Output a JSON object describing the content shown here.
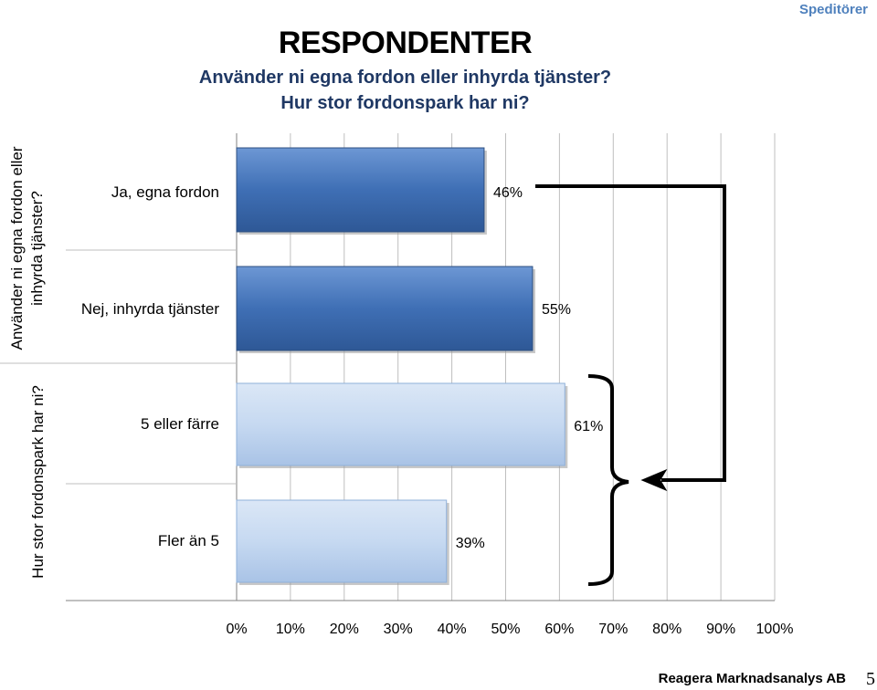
{
  "header": {
    "section_tag": "Speditörer",
    "title": "RESPONDENTER",
    "subtitle_line1": "Använder ni egna fordon eller inhyrda tjänster?",
    "subtitle_line2": "Hur stor fordonspark har ni?"
  },
  "footer": {
    "company": "Reagera Marknadsanalys AB",
    "page_number": "5"
  },
  "colors": {
    "dark_bar": "#3f6fb5",
    "light_bar": "#c6d9f1",
    "grid": "#bfbfbf",
    "bracket": "#000000"
  },
  "chart_data": {
    "type": "bar",
    "orientation": "horizontal",
    "title": "RESPONDENTER",
    "xlim": [
      0,
      100
    ],
    "x_tick_labels": [
      "0%",
      "10%",
      "20%",
      "30%",
      "40%",
      "50%",
      "60%",
      "70%",
      "80%",
      "90%",
      "100%"
    ],
    "grid": true,
    "groups": [
      {
        "label_line1": "Använder ni egna fordon eller",
        "label_line2": "inhyrda tjänster?",
        "style": "dark",
        "bars": [
          {
            "category": "Ja, egna fordon",
            "value": 46,
            "label": "46%"
          },
          {
            "category": "Nej, inhyrda tjänster",
            "value": 55,
            "label": "55%"
          }
        ]
      },
      {
        "label_line1": "Hur stor fordonspark har ni?",
        "label_line2": "",
        "style": "light",
        "bars": [
          {
            "category": "5 eller färre",
            "value": 61,
            "label": "61%"
          },
          {
            "category": "Fler än 5",
            "value": 39,
            "label": "39%"
          }
        ]
      }
    ]
  }
}
